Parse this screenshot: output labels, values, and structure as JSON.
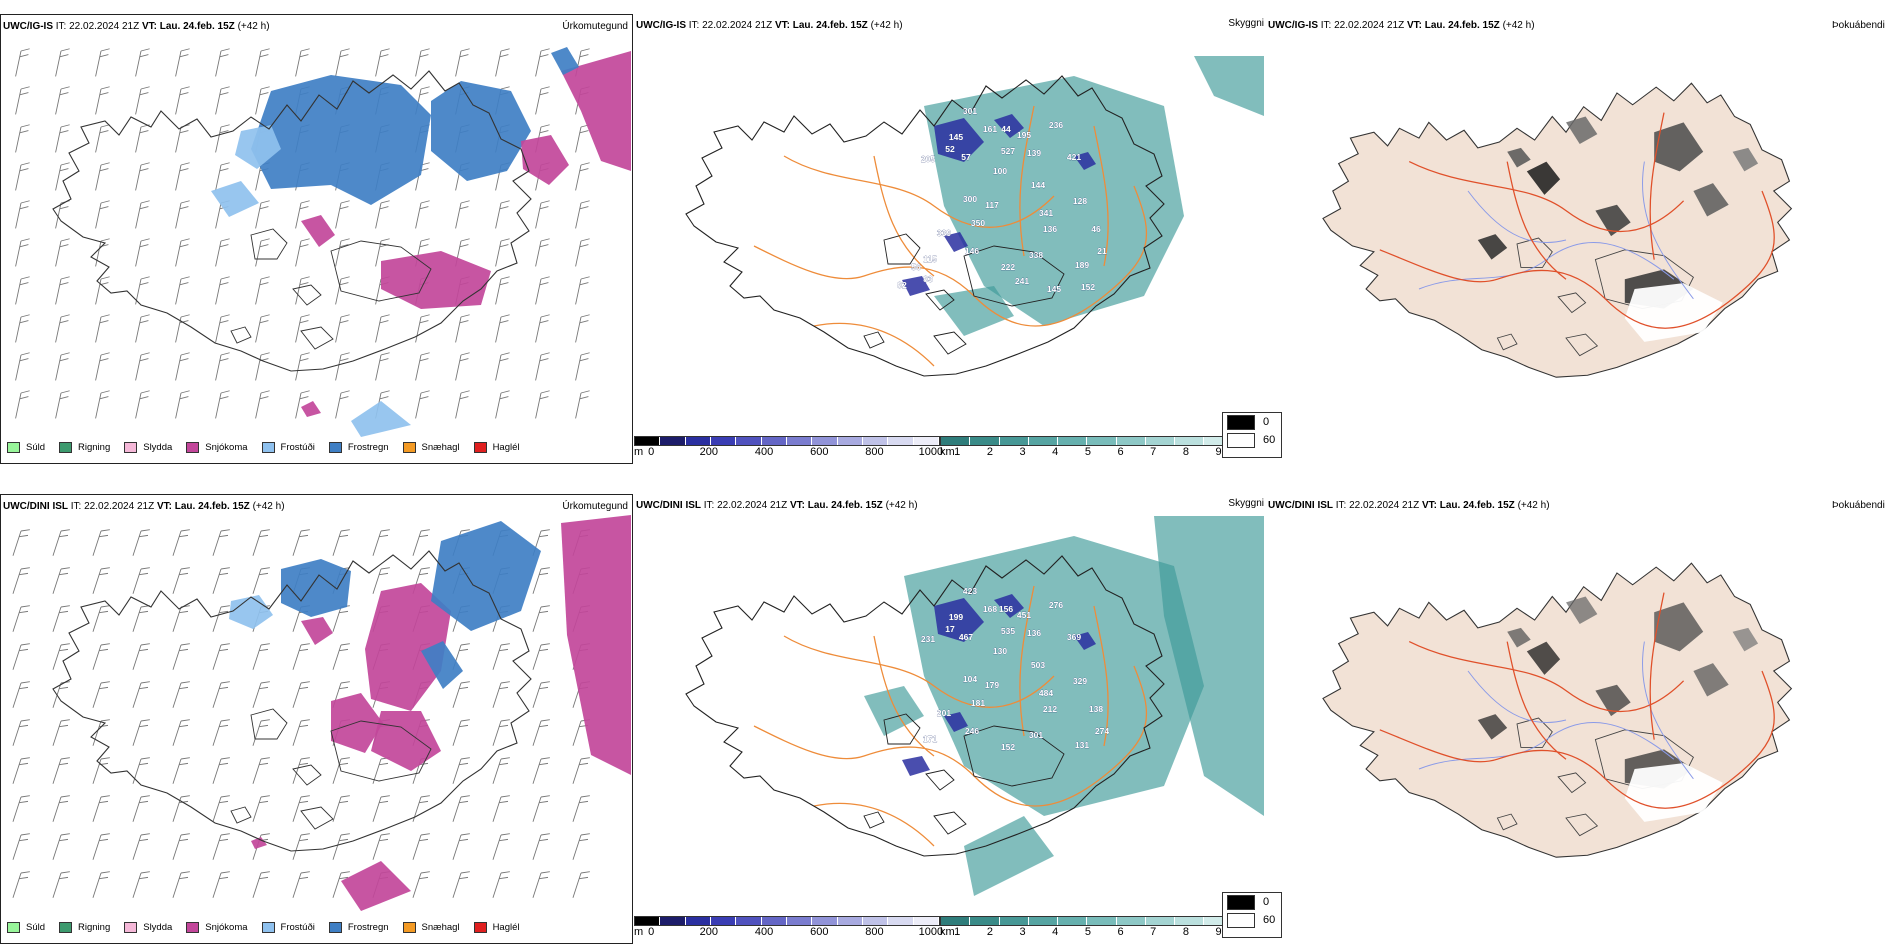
{
  "rows": [
    {
      "model_label": "UWC/IG-IS",
      "it_label": "IT:",
      "it_value": "22.02.2024 21Z",
      "vt_label": "VT:",
      "vt_value": "Lau. 24.feb. 15Z",
      "lead": "(+42 h)",
      "titles": {
        "precip_type": "Úrkomutegund",
        "clouds": "Skyggni",
        "fog": "Þokuábendi"
      },
      "cloud_labels": [
        "301",
        "236",
        "161",
        "195",
        "145",
        "139",
        "44",
        "527",
        "205",
        "52",
        "421",
        "57",
        "100",
        "144",
        "300",
        "341",
        "117",
        "128",
        "350",
        "136",
        "46",
        "338",
        "21",
        "339",
        "146",
        "115",
        "222",
        "189",
        "241",
        "145",
        "152",
        "56",
        "83",
        "82"
      ]
    },
    {
      "model_label": "UWC/DINI ISL",
      "it_label": "IT:",
      "it_value": "22.02.2024 21Z",
      "vt_label": "VT:",
      "vt_value": "Lau. 24.feb. 15Z",
      "lead": "(+42 h)",
      "titles": {
        "precip_type": "Úrkomutegund",
        "clouds": "Skyggni",
        "fog": "Þokuábendi"
      },
      "cloud_labels": [
        "423",
        "276",
        "168",
        "451",
        "199",
        "136",
        "156",
        "535",
        "231",
        "17",
        "369",
        "467",
        "130",
        "503",
        "104",
        "484",
        "179",
        "329",
        "181",
        "212",
        "138",
        "301",
        "274",
        "201",
        "246",
        "171",
        "152",
        "131"
      ]
    }
  ],
  "precip_legend": [
    {
      "label": "Súld",
      "color": "#98f59a"
    },
    {
      "label": "Rigning",
      "color": "#3c9a6e"
    },
    {
      "label": "Slydda",
      "color": "#f5b8d8"
    },
    {
      "label": "Snjókoma",
      "color": "#c2469a"
    },
    {
      "label": "Frostúði",
      "color": "#8fc1ee"
    },
    {
      "label": "Frostregn",
      "color": "#3f7fc4"
    },
    {
      "label": "Snæhagl",
      "color": "#f39a24"
    },
    {
      "label": "Haglél",
      "color": "#e02020"
    }
  ],
  "cloudbase_scale": {
    "unit": "m",
    "ticks": [
      "0",
      "200",
      "400",
      "600",
      "800",
      "1000"
    ]
  },
  "visibility_scale": {
    "unit": "km",
    "ticks": [
      "1",
      "2",
      "3",
      "4",
      "5",
      "6",
      "7",
      "8",
      "9",
      "10"
    ]
  },
  "fog_legend": [
    {
      "label": "0",
      "color": "#000000"
    },
    {
      "label": "60",
      "color": "#ffffff"
    }
  ],
  "colors": {
    "snow": "#c2469a",
    "freezing_rain": "#3f7fc4",
    "freezing_drizzle": "#8fc1ee",
    "cloud_teal": "#3e9a98",
    "cloud_base_blue": "#2a2fa0",
    "roads": "#ee8c3a",
    "fog_land": "#f2e2d6",
    "fog_roads": "#e0502a",
    "fog_rivers": "#8a9ae8"
  }
}
